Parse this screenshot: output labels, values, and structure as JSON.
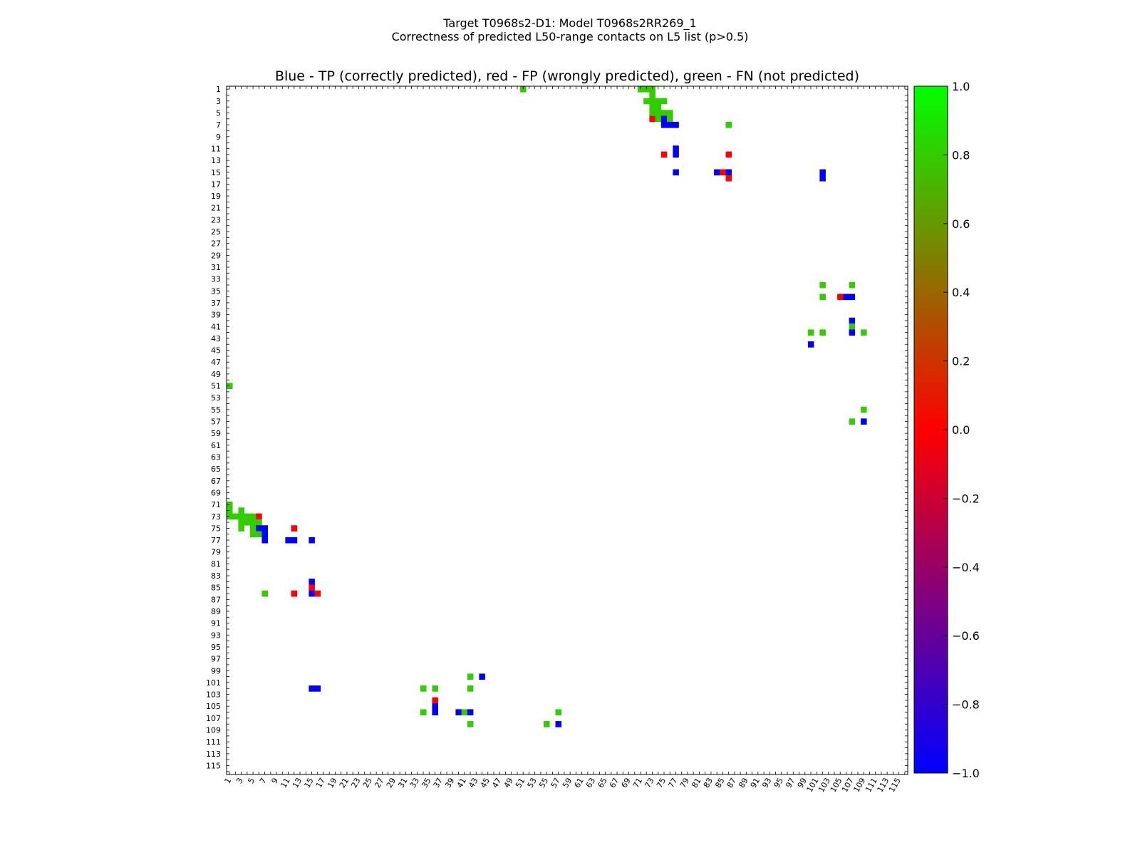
{
  "header": {
    "title_line1": "Target T0968s2-D1: Model T0968s2RR269_1",
    "title_line2": "Correctness of predicted L50-range contacts on L5 list (p>0.5)"
  },
  "chart_data": {
    "type": "heatmap",
    "title": "Blue - TP (correctly predicted), red - FP (wrongly predicted), green - FN (not predicted)",
    "xlabel": "",
    "ylabel": "",
    "n": 116,
    "x_ticks": [
      1,
      3,
      5,
      7,
      9,
      11,
      13,
      15,
      17,
      19,
      21,
      23,
      25,
      27,
      29,
      31,
      33,
      35,
      37,
      39,
      41,
      43,
      45,
      47,
      49,
      51,
      53,
      55,
      57,
      59,
      61,
      63,
      65,
      67,
      69,
      71,
      73,
      75,
      77,
      79,
      81,
      83,
      85,
      87,
      89,
      91,
      93,
      95,
      97,
      99,
      101,
      103,
      105,
      107,
      109,
      111,
      113,
      115
    ],
    "y_ticks": [
      1,
      3,
      5,
      7,
      9,
      11,
      13,
      15,
      17,
      19,
      21,
      23,
      25,
      27,
      29,
      31,
      33,
      35,
      37,
      39,
      41,
      43,
      45,
      47,
      49,
      51,
      53,
      55,
      57,
      59,
      61,
      63,
      65,
      67,
      69,
      71,
      73,
      75,
      77,
      79,
      81,
      83,
      85,
      87,
      89,
      91,
      93,
      95,
      97,
      99,
      101,
      103,
      105,
      107,
      109,
      111,
      113,
      115
    ],
    "colorbar": {
      "min": -1.0,
      "max": 1.0,
      "ticks": [
        "1.0",
        "0.8",
        "0.6",
        "0.4",
        "0.2",
        "0.0",
        "−0.2",
        "−0.4",
        "−0.6",
        "−0.8",
        "−1.0"
      ],
      "stops": [
        "#0000ff",
        "#ff0000",
        "#00ff00"
      ]
    },
    "categories": {
      "TP": "#0000ff",
      "FP": "#ff0000",
      "FN": "#33cc00"
    },
    "cells": [
      {
        "row": 1,
        "col": 51,
        "cat": "FN"
      },
      {
        "row": 1,
        "col": 71,
        "cat": "FN"
      },
      {
        "row": 1,
        "col": 72,
        "cat": "FN"
      },
      {
        "row": 1,
        "col": 73,
        "cat": "FN"
      },
      {
        "row": 2,
        "col": 73,
        "cat": "FN"
      },
      {
        "row": 3,
        "col": 72,
        "cat": "FN"
      },
      {
        "row": 3,
        "col": 73,
        "cat": "FN"
      },
      {
        "row": 3,
        "col": 74,
        "cat": "FN"
      },
      {
        "row": 3,
        "col": 75,
        "cat": "FN"
      },
      {
        "row": 4,
        "col": 73,
        "cat": "FN"
      },
      {
        "row": 4,
        "col": 74,
        "cat": "FN"
      },
      {
        "row": 5,
        "col": 73,
        "cat": "FN"
      },
      {
        "row": 5,
        "col": 74,
        "cat": "FN"
      },
      {
        "row": 5,
        "col": 75,
        "cat": "FN"
      },
      {
        "row": 5,
        "col": 76,
        "cat": "FN"
      },
      {
        "row": 6,
        "col": 73,
        "cat": "FP"
      },
      {
        "row": 6,
        "col": 74,
        "cat": "FN"
      },
      {
        "row": 6,
        "col": 75,
        "cat": "TP"
      },
      {
        "row": 6,
        "col": 76,
        "cat": "FN"
      },
      {
        "row": 7,
        "col": 75,
        "cat": "TP"
      },
      {
        "row": 7,
        "col": 76,
        "cat": "TP"
      },
      {
        "row": 7,
        "col": 77,
        "cat": "TP"
      },
      {
        "row": 7,
        "col": 86,
        "cat": "FN"
      },
      {
        "row": 11,
        "col": 77,
        "cat": "TP"
      },
      {
        "row": 12,
        "col": 75,
        "cat": "FP"
      },
      {
        "row": 12,
        "col": 77,
        "cat": "TP"
      },
      {
        "row": 12,
        "col": 86,
        "cat": "FP"
      },
      {
        "row": 15,
        "col": 77,
        "cat": "TP"
      },
      {
        "row": 15,
        "col": 84,
        "cat": "TP"
      },
      {
        "row": 15,
        "col": 85,
        "cat": "FP"
      },
      {
        "row": 15,
        "col": 86,
        "cat": "TP"
      },
      {
        "row": 15,
        "col": 102,
        "cat": "TP"
      },
      {
        "row": 16,
        "col": 86,
        "cat": "FP"
      },
      {
        "row": 16,
        "col": 102,
        "cat": "TP"
      },
      {
        "row": 34,
        "col": 102,
        "cat": "FN"
      },
      {
        "row": 34,
        "col": 107,
        "cat": "FN"
      },
      {
        "row": 36,
        "col": 102,
        "cat": "FN"
      },
      {
        "row": 36,
        "col": 105,
        "cat": "FP"
      },
      {
        "row": 36,
        "col": 106,
        "cat": "TP"
      },
      {
        "row": 36,
        "col": 107,
        "cat": "TP"
      },
      {
        "row": 40,
        "col": 107,
        "cat": "TP"
      },
      {
        "row": 41,
        "col": 107,
        "cat": "FN"
      },
      {
        "row": 42,
        "col": 100,
        "cat": "FN"
      },
      {
        "row": 42,
        "col": 102,
        "cat": "FN"
      },
      {
        "row": 42,
        "col": 107,
        "cat": "TP"
      },
      {
        "row": 42,
        "col": 109,
        "cat": "FN"
      },
      {
        "row": 44,
        "col": 100,
        "cat": "TP"
      },
      {
        "row": 51,
        "col": 1,
        "cat": "FN"
      },
      {
        "row": 55,
        "col": 109,
        "cat": "FN"
      },
      {
        "row": 57,
        "col": 107,
        "cat": "FN"
      },
      {
        "row": 57,
        "col": 109,
        "cat": "TP"
      },
      {
        "row": 71,
        "col": 1,
        "cat": "FN"
      },
      {
        "row": 72,
        "col": 1,
        "cat": "FN"
      },
      {
        "row": 72,
        "col": 3,
        "cat": "FN"
      },
      {
        "row": 73,
        "col": 1,
        "cat": "FN"
      },
      {
        "row": 73,
        "col": 2,
        "cat": "FN"
      },
      {
        "row": 73,
        "col": 3,
        "cat": "FN"
      },
      {
        "row": 73,
        "col": 4,
        "cat": "FN"
      },
      {
        "row": 73,
        "col": 5,
        "cat": "FN"
      },
      {
        "row": 73,
        "col": 6,
        "cat": "FP"
      },
      {
        "row": 74,
        "col": 3,
        "cat": "FN"
      },
      {
        "row": 74,
        "col": 4,
        "cat": "FN"
      },
      {
        "row": 74,
        "col": 5,
        "cat": "FN"
      },
      {
        "row": 74,
        "col": 6,
        "cat": "FN"
      },
      {
        "row": 75,
        "col": 3,
        "cat": "FN"
      },
      {
        "row": 75,
        "col": 5,
        "cat": "FN"
      },
      {
        "row": 75,
        "col": 6,
        "cat": "TP"
      },
      {
        "row": 75,
        "col": 7,
        "cat": "TP"
      },
      {
        "row": 75,
        "col": 12,
        "cat": "FP"
      },
      {
        "row": 76,
        "col": 5,
        "cat": "FN"
      },
      {
        "row": 76,
        "col": 6,
        "cat": "FN"
      },
      {
        "row": 76,
        "col": 7,
        "cat": "TP"
      },
      {
        "row": 77,
        "col": 7,
        "cat": "TP"
      },
      {
        "row": 77,
        "col": 11,
        "cat": "TP"
      },
      {
        "row": 77,
        "col": 12,
        "cat": "TP"
      },
      {
        "row": 77,
        "col": 15,
        "cat": "TP"
      },
      {
        "row": 84,
        "col": 15,
        "cat": "TP"
      },
      {
        "row": 85,
        "col": 15,
        "cat": "FP"
      },
      {
        "row": 86,
        "col": 7,
        "cat": "FN"
      },
      {
        "row": 86,
        "col": 12,
        "cat": "FP"
      },
      {
        "row": 86,
        "col": 15,
        "cat": "TP"
      },
      {
        "row": 86,
        "col": 16,
        "cat": "FP"
      },
      {
        "row": 100,
        "col": 42,
        "cat": "FN"
      },
      {
        "row": 100,
        "col": 44,
        "cat": "TP"
      },
      {
        "row": 102,
        "col": 15,
        "cat": "TP"
      },
      {
        "row": 102,
        "col": 16,
        "cat": "TP"
      },
      {
        "row": 102,
        "col": 34,
        "cat": "FN"
      },
      {
        "row": 102,
        "col": 36,
        "cat": "FN"
      },
      {
        "row": 102,
        "col": 42,
        "cat": "FN"
      },
      {
        "row": 104,
        "col": 36,
        "cat": "FP"
      },
      {
        "row": 105,
        "col": 36,
        "cat": "TP"
      },
      {
        "row": 106,
        "col": 34,
        "cat": "FN"
      },
      {
        "row": 106,
        "col": 36,
        "cat": "TP"
      },
      {
        "row": 106,
        "col": 40,
        "cat": "TP"
      },
      {
        "row": 106,
        "col": 41,
        "cat": "FN"
      },
      {
        "row": 106,
        "col": 42,
        "cat": "TP"
      },
      {
        "row": 106,
        "col": 57,
        "cat": "FN"
      },
      {
        "row": 108,
        "col": 42,
        "cat": "FN"
      },
      {
        "row": 108,
        "col": 55,
        "cat": "FN"
      },
      {
        "row": 108,
        "col": 57,
        "cat": "TP"
      }
    ]
  }
}
